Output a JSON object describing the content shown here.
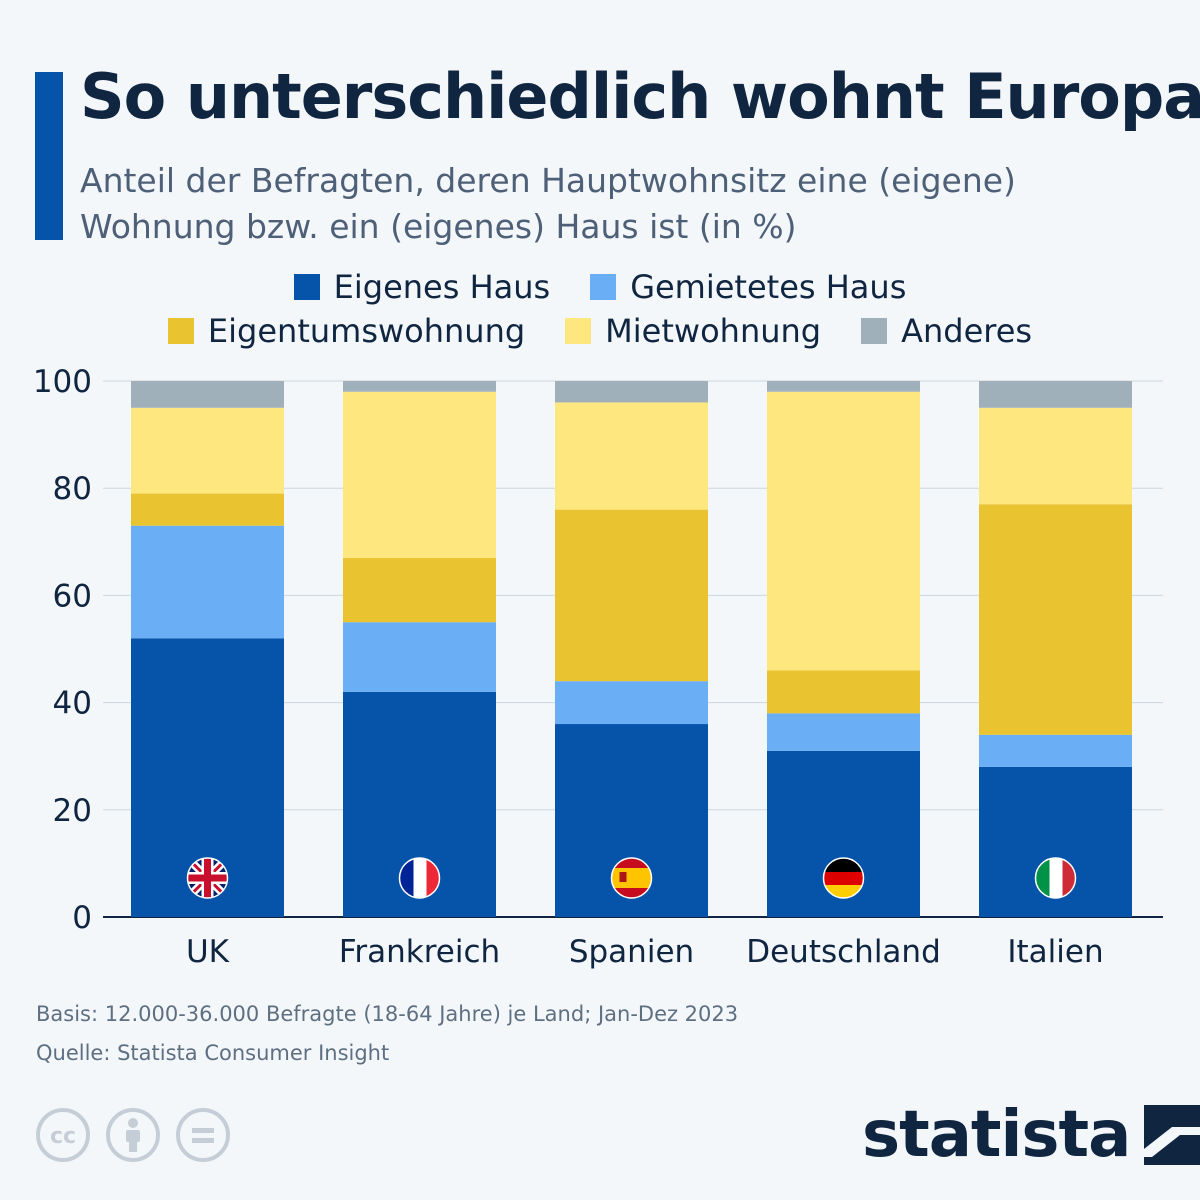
{
  "header": {
    "title": "So unterschiedlich wohnt Europa",
    "subtitle": "Anteil der Befragten, deren Hauptwohnsitz eine (eigene) Wohnung bzw. ein (eigenes) Haus ist (in %)"
  },
  "colors": {
    "Eigenes Haus": "#0554aa",
    "Gemietetes Haus": "#6aaef5",
    "Eigentumswohnung": "#e9c330",
    "Mietwohnung": "#fde77e",
    "Anderes": "#9fb0bb"
  },
  "chart_data": {
    "type": "bar",
    "stacked": true,
    "title": "So unterschiedlich wohnt Europa",
    "ylim": [
      0,
      100
    ],
    "yticks": [
      0,
      20,
      40,
      60,
      80,
      100
    ],
    "categories": [
      "UK",
      "Frankreich",
      "Spanien",
      "Deutschland",
      "Italien"
    ],
    "flags": [
      "uk-flag",
      "france-flag",
      "spain-flag",
      "germany-flag",
      "italy-flag"
    ],
    "series": [
      {
        "name": "Eigenes Haus",
        "values": [
          52,
          42,
          36,
          31,
          28
        ]
      },
      {
        "name": "Gemietetes Haus",
        "values": [
          21,
          13,
          8,
          7,
          6
        ]
      },
      {
        "name": "Eigentumswohnung",
        "values": [
          6,
          12,
          32,
          8,
          43
        ]
      },
      {
        "name": "Mietwohnung",
        "values": [
          16,
          31,
          20,
          52,
          18
        ]
      },
      {
        "name": "Anderes",
        "values": [
          5,
          2,
          4,
          2,
          5
        ]
      }
    ]
  },
  "footer": {
    "basis": "Basis: 12.000-36.000 Befragte (18-64 Jahre) je Land; Jan-Dez 2023",
    "source": "Quelle: Statista Consumer Insight",
    "brand": "statista"
  }
}
